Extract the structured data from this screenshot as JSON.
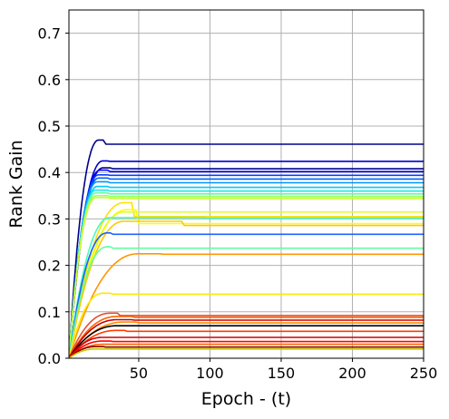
{
  "chart_data": {
    "type": "line",
    "title": "",
    "xlabel": "Epoch - (t)",
    "ylabel": "Rank Gain",
    "xlim": [
      1,
      250
    ],
    "ylim": [
      0.0,
      0.75
    ],
    "xticks": [
      50,
      100,
      150,
      200,
      250
    ],
    "yticks": [
      0.0,
      0.1,
      0.2,
      0.3,
      0.4,
      0.5,
      0.6,
      0.7
    ],
    "xtick_labels": [
      "50",
      "100",
      "150",
      "200",
      "250"
    ],
    "ytick_labels": [
      "0.0",
      "0.1",
      "0.2",
      "0.3",
      "0.4",
      "0.5",
      "0.6",
      "0.7"
    ],
    "grid": true,
    "legend": "none",
    "colormap": "jet",
    "series": [
      {
        "color": "#00008b",
        "peak": 0.47,
        "peak_x": 25,
        "final": 0.461,
        "rise": 22
      },
      {
        "color": "#0000cd",
        "peak": 0.425,
        "peak_x": 28,
        "final": 0.424,
        "rise": 25
      },
      {
        "color": "#00008b",
        "peak": 0.41,
        "peak_x": 30,
        "final": 0.408,
        "rise": 25
      },
      {
        "color": "#0000ff",
        "peak": 0.405,
        "peak_x": 28,
        "final": 0.402,
        "rise": 23
      },
      {
        "color": "#0a3cff",
        "peak": 0.395,
        "peak_x": 28,
        "final": 0.394,
        "rise": 22
      },
      {
        "color": "#0060ff",
        "peak": 0.388,
        "peak_x": 28,
        "final": 0.386,
        "rise": 22
      },
      {
        "color": "#0094ff",
        "peak": 0.38,
        "peak_x": 28,
        "final": 0.378,
        "rise": 21
      },
      {
        "color": "#00c8ff",
        "peak": 0.37,
        "peak_x": 28,
        "final": 0.368,
        "rise": 21
      },
      {
        "color": "#20e8e0",
        "peak": 0.362,
        "peak_x": 28,
        "final": 0.36,
        "rise": 20
      },
      {
        "color": "#60ffa0",
        "peak": 0.356,
        "peak_x": 28,
        "final": 0.354,
        "rise": 20
      },
      {
        "color": "#a0ff60",
        "peak": 0.35,
        "peak_x": 28,
        "final": 0.348,
        "rise": 20
      },
      {
        "color": "#c8ff30",
        "peak": 0.346,
        "peak_x": 28,
        "final": 0.344,
        "rise": 20
      },
      {
        "color": "#ffe000",
        "peak": 0.335,
        "peak_x": 45,
        "final": 0.305,
        "rise": 40
      },
      {
        "color": "#ffff00",
        "peak": 0.32,
        "peak_x": 48,
        "final": 0.29,
        "rise": 42
      },
      {
        "color": "#e0ff20",
        "peak": 0.315,
        "peak_x": 75,
        "final": 0.315,
        "rise": 40
      },
      {
        "color": "#40ffc0",
        "peak": 0.303,
        "peak_x": 95,
        "final": 0.302,
        "rise": 30
      },
      {
        "color": "#ffc800",
        "peak": 0.295,
        "peak_x": 80,
        "final": 0.286,
        "rise": 40
      },
      {
        "color": "#2060ff",
        "peak": 0.27,
        "peak_x": 30,
        "final": 0.267,
        "rise": 28
      },
      {
        "color": "#60ffa0",
        "peak": 0.24,
        "peak_x": 30,
        "final": 0.237,
        "rise": 28
      },
      {
        "color": "#ff9600",
        "peak": 0.225,
        "peak_x": 65,
        "final": 0.224,
        "rise": 50
      },
      {
        "color": "#ffe800",
        "peak": 0.14,
        "peak_x": 30,
        "final": 0.138,
        "rise": 25
      },
      {
        "color": "#e05030",
        "peak": 0.097,
        "peak_x": 35,
        "final": 0.092,
        "rise": 30
      },
      {
        "color": "#ff6000",
        "peak": 0.09,
        "peak_x": 45,
        "final": 0.088,
        "rise": 35
      },
      {
        "color": "#c80000",
        "peak": 0.083,
        "peak_x": 45,
        "final": 0.082,
        "rise": 35
      },
      {
        "color": "#ff8c00",
        "peak": 0.078,
        "peak_x": 48,
        "final": 0.076,
        "rise": 40
      },
      {
        "color": "#000000",
        "peak": 0.07,
        "peak_x": 40,
        "final": 0.07,
        "rise": 35
      },
      {
        "color": "#ff3c00",
        "peak": 0.06,
        "peak_x": 40,
        "final": 0.058,
        "rise": 35
      },
      {
        "color": "#d00000",
        "peak": 0.045,
        "peak_x": 30,
        "final": 0.045,
        "rise": 25
      },
      {
        "color": "#ff0000",
        "peak": 0.037,
        "peak_x": 30,
        "final": 0.036,
        "rise": 25
      },
      {
        "color": "#ff6400",
        "peak": 0.03,
        "peak_x": 30,
        "final": 0.03,
        "rise": 25
      },
      {
        "color": "#8b0000",
        "peak": 0.025,
        "peak_x": 25,
        "final": 0.024,
        "rise": 20
      },
      {
        "color": "#c8c800",
        "peak": 0.02,
        "peak_x": 25,
        "final": 0.02,
        "rise": 20
      }
    ]
  }
}
